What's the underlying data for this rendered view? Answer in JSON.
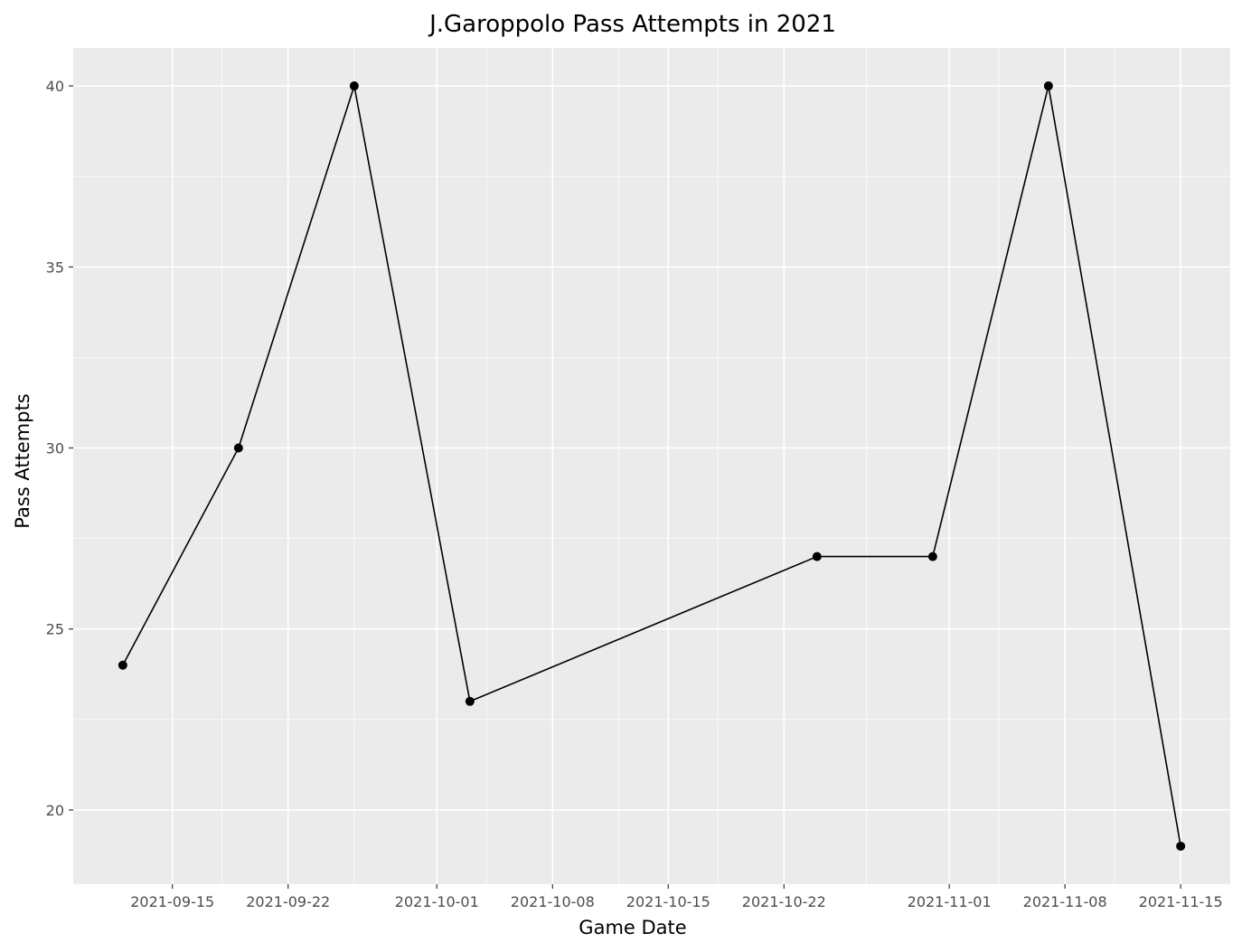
{
  "chart_data": {
    "type": "line",
    "title": "J.Garoppolo Pass Attempts in 2021",
    "xlabel": "Game Date",
    "ylabel": "Pass Attempts",
    "x_ticks": [
      "2021-09-15",
      "2021-09-22",
      "2021-10-01",
      "2021-10-08",
      "2021-10-15",
      "2021-10-22",
      "2021-11-01",
      "2021-11-08",
      "2021-11-15"
    ],
    "x_minor_ticks": [
      "2021-09-18",
      "2021-09-26",
      "2021-10-04",
      "2021-10-12",
      "2021-10-18",
      "2021-10-27",
      "2021-11-04",
      "2021-11-11"
    ],
    "y_ticks": [
      20,
      25,
      30,
      35,
      40
    ],
    "xlim": [
      "2021-09-09",
      "2021-11-18"
    ],
    "ylim": [
      17.95,
      41.05
    ],
    "grid": true,
    "marker": "circle",
    "colors": {
      "panel": "#ebebeb",
      "grid": "#ffffff",
      "line": "#000000",
      "point": "#000000",
      "tick": "#333333"
    },
    "points": [
      {
        "x": "2021-09-12",
        "y": 24
      },
      {
        "x": "2021-09-19",
        "y": 30
      },
      {
        "x": "2021-09-26",
        "y": 40
      },
      {
        "x": "2021-10-03",
        "y": 23
      },
      {
        "x": "2021-10-24",
        "y": 27
      },
      {
        "x": "2021-10-31",
        "y": 27
      },
      {
        "x": "2021-11-07",
        "y": 40
      },
      {
        "x": "2021-11-15",
        "y": 19
      }
    ]
  }
}
